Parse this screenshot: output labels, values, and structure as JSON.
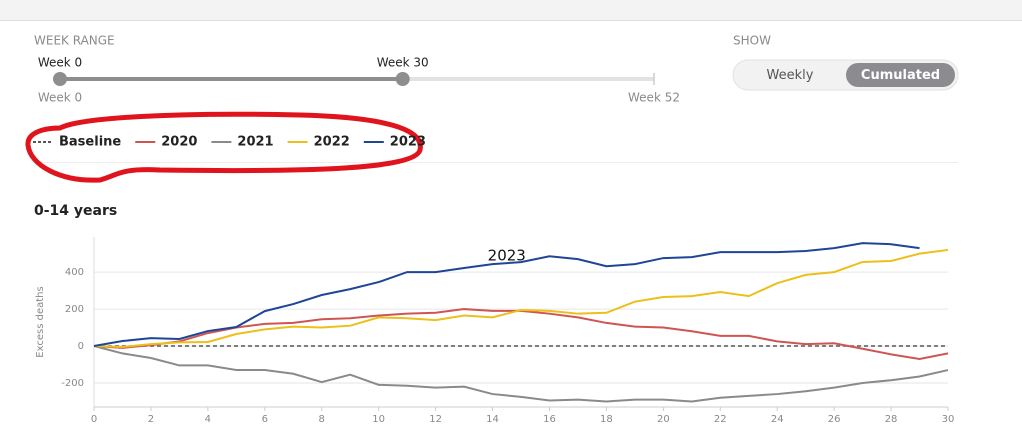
{
  "controls": {
    "week_range": {
      "title": "WEEK RANGE",
      "min": 0,
      "max": 52,
      "start": 0,
      "end": 30,
      "start_label": "Week 0",
      "end_label": "Week 30",
      "min_label": "Week 0",
      "max_label": "Week 52"
    },
    "show": {
      "title": "SHOW",
      "options": [
        "Weekly",
        "Cumulated"
      ],
      "selected_index": 1
    }
  },
  "chart_data": {
    "type": "line",
    "title": "0-14 years",
    "annotation": "2023",
    "y_label": "Excess deaths",
    "x": [
      0,
      1,
      2,
      3,
      4,
      5,
      6,
      7,
      8,
      9,
      10,
      11,
      12,
      13,
      14,
      15,
      16,
      17,
      18,
      19,
      20,
      21,
      22,
      23,
      24,
      25,
      26,
      27,
      28,
      29,
      30
    ],
    "xlim": [
      0,
      30
    ],
    "xticks": [
      0,
      2,
      4,
      6,
      8,
      10,
      12,
      14,
      16,
      18,
      20,
      22,
      24,
      26,
      28,
      30
    ],
    "ylim": [
      -330,
      590
    ],
    "yticks": [
      -200,
      0,
      200,
      400
    ],
    "grid": true,
    "series": [
      {
        "name": "Baseline",
        "color": "#555555",
        "dashed": true,
        "values": [
          0,
          0,
          0,
          0,
          0,
          0,
          0,
          0,
          0,
          0,
          0,
          0,
          0,
          0,
          0,
          0,
          0,
          0,
          0,
          0,
          0,
          0,
          0,
          0,
          0,
          0,
          0,
          0,
          0,
          0,
          0
        ]
      },
      {
        "name": "2020",
        "color": "#cf5550",
        "values": [
          0,
          -10,
          5,
          25,
          70,
          100,
          120,
          125,
          145,
          150,
          165,
          175,
          180,
          200,
          190,
          190,
          175,
          155,
          125,
          105,
          100,
          80,
          55,
          55,
          25,
          10,
          15,
          -15,
          -45,
          -70,
          -40
        ]
      },
      {
        "name": "2021",
        "color": "#8a8a8a",
        "values": [
          0,
          -40,
          -65,
          -105,
          -105,
          -130,
          -130,
          -150,
          -195,
          -155,
          -210,
          -215,
          -225,
          -220,
          -260,
          -275,
          -295,
          -290,
          -300,
          -290,
          -290,
          -300,
          -280,
          -270,
          -260,
          -245,
          -225,
          -200,
          -185,
          -165,
          -130
        ]
      },
      {
        "name": "2022",
        "color": "#ecc01a",
        "values": [
          0,
          -5,
          10,
          20,
          22,
          65,
          90,
          105,
          100,
          110,
          155,
          150,
          140,
          165,
          155,
          195,
          190,
          175,
          180,
          240,
          265,
          270,
          292,
          270,
          340,
          385,
          400,
          455,
          460,
          500,
          520
        ]
      },
      {
        "name": "2023",
        "color": "#1f4597",
        "values": [
          0,
          27,
          43,
          38,
          81,
          103,
          189,
          227,
          276,
          308,
          346,
          400,
          400,
          422,
          443,
          454,
          486,
          470,
          432,
          443,
          476,
          481,
          508,
          508,
          508,
          514,
          530,
          557,
          551,
          530,
          null
        ]
      }
    ]
  }
}
